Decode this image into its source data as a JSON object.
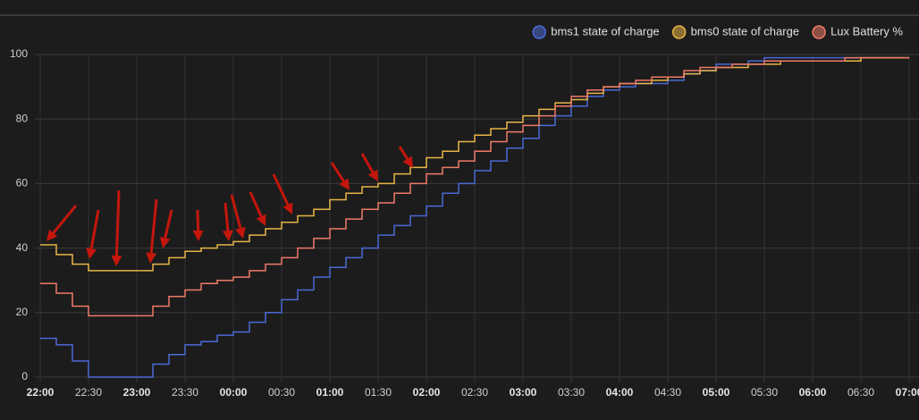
{
  "chart_data": {
    "type": "line",
    "step": true,
    "x": [
      0,
      10,
      20,
      30,
      40,
      50,
      60,
      70,
      80,
      90,
      100,
      110,
      120,
      130,
      140,
      150,
      160,
      170,
      180,
      190,
      200,
      210,
      220,
      230,
      240,
      250,
      260,
      270,
      280,
      290,
      300,
      310,
      320,
      330,
      340,
      350,
      360,
      370,
      380,
      390,
      400,
      410,
      420,
      430,
      440,
      450,
      460,
      470,
      480,
      490,
      500,
      510,
      520,
      530,
      540
    ],
    "series": [
      {
        "name": "bms1 state of charge",
        "color": "#4a6ad6",
        "values": [
          12,
          10,
          5,
          0,
          0,
          0,
          0,
          4,
          7,
          10,
          11,
          13,
          14,
          17,
          20,
          24,
          27,
          31,
          34,
          37,
          40,
          44,
          47,
          50,
          53,
          57,
          60,
          64,
          67,
          71,
          74,
          78,
          81,
          84,
          87,
          89,
          90,
          91,
          91,
          92,
          94,
          95,
          97,
          97,
          98,
          99,
          99,
          99,
          99,
          99,
          99,
          99,
          99,
          99,
          99
        ]
      },
      {
        "name": "bms0 state of charge",
        "color": "#e8b547",
        "values": [
          41,
          38,
          35,
          33,
          33,
          33,
          33,
          35,
          37,
          39,
          40,
          41,
          42,
          44,
          46,
          48,
          50,
          52,
          55,
          57,
          59,
          60,
          63,
          65,
          68,
          70,
          73,
          75,
          77,
          79,
          81,
          83,
          85,
          86,
          88,
          90,
          91,
          91,
          92,
          93,
          94,
          95,
          96,
          96,
          97,
          97,
          98,
          98,
          98,
          98,
          98,
          99,
          99,
          99,
          99
        ]
      },
      {
        "name": "Lux Battery %",
        "color": "#ee7a68",
        "values": [
          29,
          26,
          22,
          19,
          19,
          19,
          19,
          22,
          25,
          27,
          29,
          30,
          31,
          33,
          35,
          37,
          40,
          43,
          46,
          49,
          52,
          54,
          57,
          60,
          63,
          65,
          67,
          70,
          73,
          76,
          78,
          81,
          84,
          87,
          89,
          90,
          91,
          92,
          93,
          93,
          95,
          96,
          96,
          97,
          97,
          98,
          98,
          98,
          98,
          98,
          99,
          99,
          99,
          99,
          99
        ]
      }
    ],
    "xlim": [
      0,
      540
    ],
    "xticks": [
      {
        "value": 0,
        "label": "22:00"
      },
      {
        "value": 30,
        "label": "22:30"
      },
      {
        "value": 60,
        "label": "23:00"
      },
      {
        "value": 90,
        "label": "23:30"
      },
      {
        "value": 120,
        "label": "00:00"
      },
      {
        "value": 150,
        "label": "00:30"
      },
      {
        "value": 180,
        "label": "01:00"
      },
      {
        "value": 210,
        "label": "01:30"
      },
      {
        "value": 240,
        "label": "02:00"
      },
      {
        "value": 270,
        "label": "02:30"
      },
      {
        "value": 300,
        "label": "03:00"
      },
      {
        "value": 330,
        "label": "03:30"
      },
      {
        "value": 360,
        "label": "04:00"
      },
      {
        "value": 390,
        "label": "04:30"
      },
      {
        "value": 420,
        "label": "05:00"
      },
      {
        "value": 450,
        "label": "05:30"
      },
      {
        "value": 480,
        "label": "06:00"
      },
      {
        "value": 510,
        "label": "06:30"
      },
      {
        "value": 540,
        "label": "07:00"
      }
    ],
    "ylim": [
      0,
      100
    ],
    "yticks": [
      0,
      20,
      40,
      60,
      80,
      100
    ],
    "grid": true,
    "legend": "top-right"
  }
}
